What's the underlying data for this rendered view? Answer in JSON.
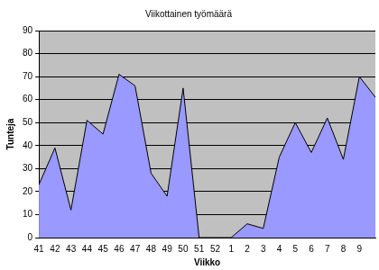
{
  "chart_data": {
    "type": "area",
    "title": "Viikottainen työmäärä",
    "x_label": "Viikko",
    "y_label": "Tunteja",
    "categories": [
      "41",
      "42",
      "43",
      "44",
      "45",
      "46",
      "47",
      "48",
      "49",
      "50",
      "51",
      "52",
      "1",
      "2",
      "3",
      "4",
      "5",
      "6",
      "7",
      "8",
      "9",
      null
    ],
    "values": [
      23,
      39,
      12,
      51,
      45,
      71,
      66,
      28,
      18,
      65,
      0,
      0,
      0,
      6,
      4,
      35,
      50,
      37,
      52,
      34,
      70,
      61
    ],
    "color": "#9999ff",
    "ylim": [
      0,
      90
    ],
    "yticks": [
      0,
      10,
      20,
      30,
      40,
      50,
      60,
      70,
      80,
      90
    ],
    "grid": true
  }
}
